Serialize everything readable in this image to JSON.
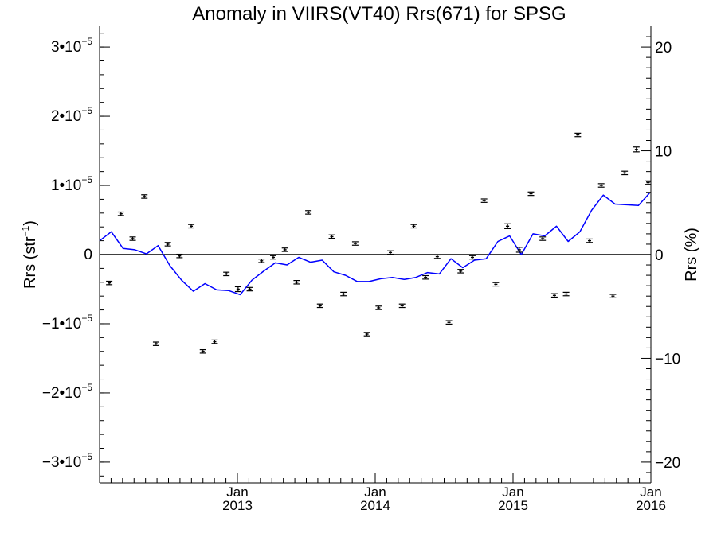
{
  "chart_data": {
    "type": "line",
    "title": "Anomaly in VIIRS(VT40) Rrs(671) for SPSG",
    "ylabel_left_base": "Rrs (str",
    "ylabel_left_sup": "−1",
    "ylabel_left_end": ")",
    "ylabel_right": "Rrs (%)",
    "xlabel": "",
    "xlim": [
      2012.0,
      2016.0
    ],
    "ylim": [
      -3.3e-05,
      3.3e-05
    ],
    "ylim_right": [
      -22,
      22
    ],
    "grid": false,
    "legend": "none",
    "colors": {
      "line": "#0000ff",
      "points": "#000000",
      "zero_line": "#000000"
    },
    "x_ticks_major": [
      {
        "value": 2013.0,
        "month": "Jan",
        "year": "2013"
      },
      {
        "value": 2014.0,
        "month": "Jan",
        "year": "2014"
      },
      {
        "value": 2015.0,
        "month": "Jan",
        "year": "2015"
      },
      {
        "value": 2016.0,
        "month": "Jan",
        "year": "2016"
      }
    ],
    "y_ticks_left": [
      {
        "value": 3e-05,
        "mant": "3•10",
        "exp": "−5"
      },
      {
        "value": 2e-05,
        "mant": "2•10",
        "exp": "−5"
      },
      {
        "value": 1e-05,
        "mant": "1•10",
        "exp": "−5"
      },
      {
        "value": 0,
        "mant": "0",
        "exp": ""
      },
      {
        "value": -1e-05,
        "mant": "−1•10",
        "exp": "−5"
      },
      {
        "value": -2e-05,
        "mant": "−2•10",
        "exp": "−5"
      },
      {
        "value": -3e-05,
        "mant": "−3•10",
        "exp": "−5"
      }
    ],
    "y_ticks_right": [
      {
        "value": 20,
        "label": "20"
      },
      {
        "value": 10,
        "label": "10"
      },
      {
        "value": 0,
        "label": "0"
      },
      {
        "value": -10,
        "label": "−10"
      },
      {
        "value": -20,
        "label": "−20"
      }
    ],
    "series": [
      {
        "kind": "line",
        "x": [
          2012.0,
          2012.085,
          2012.17,
          2012.255,
          2012.34,
          2012.425,
          2012.51,
          2012.595,
          2012.68,
          2012.765,
          2012.85,
          2012.935,
          2013.02,
          2013.105,
          2013.19,
          2013.275,
          2013.36,
          2013.445,
          2013.53,
          2013.615,
          2013.7,
          2013.785,
          2013.87,
          2013.955,
          2014.04,
          2014.125,
          2014.21,
          2014.295,
          2014.38,
          2014.465,
          2014.55,
          2014.635,
          2014.72,
          2014.805,
          2014.89,
          2014.975,
          2015.06,
          2015.145,
          2015.23,
          2015.315,
          2015.4,
          2015.485,
          2015.57,
          2015.655,
          2015.74,
          2015.825,
          2015.91,
          2015.995
        ],
        "y": [
          2e-06,
          3.3e-06,
          9e-07,
          7e-07,
          1e-07,
          1.3e-06,
          -1.6e-06,
          -3.7e-06,
          -5.3e-06,
          -4.2e-06,
          -5.1e-06,
          -5.2e-06,
          -5.8e-06,
          -3.7e-06,
          -2.4e-06,
          -1.2e-06,
          -1.5e-06,
          -4e-07,
          -1.1e-06,
          -8e-07,
          -2.5e-06,
          -3e-06,
          -3.9e-06,
          -3.9e-06,
          -3.5e-06,
          -3.3e-06,
          -3.6e-06,
          -3.3e-06,
          -2.6e-06,
          -2.8e-06,
          -6e-07,
          -1.9e-06,
          -8e-07,
          -6e-07,
          1.9e-06,
          2.7e-06,
          0.0,
          3e-06,
          2.7e-06,
          4.1e-06,
          1.9e-06,
          3.3e-06,
          6.4e-06,
          8.6e-06,
          7.3e-06,
          7.2e-06,
          7.1e-06,
          9e-06
        ]
      },
      {
        "kind": "errorbar",
        "x": [
          2012.07,
          2012.155,
          2012.24,
          2012.325,
          2012.41,
          2012.495,
          2012.58,
          2012.665,
          2012.75,
          2012.835,
          2012.92,
          2013.005,
          2013.09,
          2013.175,
          2013.26,
          2013.345,
          2013.43,
          2013.515,
          2013.6,
          2013.685,
          2013.77,
          2013.855,
          2013.94,
          2014.025,
          2014.11,
          2014.195,
          2014.28,
          2014.365,
          2014.45,
          2014.535,
          2014.62,
          2014.705,
          2014.79,
          2014.875,
          2014.96,
          2015.045,
          2015.13,
          2015.215,
          2015.3,
          2015.385,
          2015.47,
          2015.555,
          2015.64,
          2015.725,
          2015.81,
          2015.895,
          2015.98
        ],
        "y": [
          -4.1e-06,
          5.9e-06,
          2.3e-06,
          8.4e-06,
          -1.29e-05,
          1.5e-06,
          -2e-07,
          4.1e-06,
          -1.4e-05,
          -1.26e-05,
          -2.8e-06,
          -5e-06,
          -5e-06,
          -9e-07,
          -4e-07,
          7e-07,
          -4e-06,
          6.1e-06,
          -7.4e-06,
          2.6e-06,
          -5.7e-06,
          1.6e-06,
          -1.15e-05,
          -7.7e-06,
          3e-07,
          -7.4e-06,
          4.1e-06,
          -3.3e-06,
          -3e-07,
          -9.8e-06,
          -2.4e-06,
          -4e-07,
          7.8e-06,
          -4.3e-06,
          4.1e-06,
          7e-07,
          8.8e-06,
          2.3e-06,
          -5.9e-06,
          -5.7e-06,
          1.73e-05,
          2e-06,
          1e-05,
          -6e-06,
          1.18e-05,
          1.52e-05,
          1.04e-05
        ],
        "err": [
          2.5e-07,
          2.5e-07,
          2.5e-07,
          2.5e-07,
          2.5e-07,
          2.5e-07,
          2.5e-07,
          2.5e-07,
          2.5e-07,
          2.5e-07,
          2.5e-07,
          3.5e-07,
          2.5e-07,
          2.5e-07,
          2.5e-07,
          2.5e-07,
          2.5e-07,
          2.5e-07,
          2.5e-07,
          2.5e-07,
          2.5e-07,
          2.5e-07,
          2.5e-07,
          2.5e-07,
          2.5e-07,
          2.5e-07,
          2.5e-07,
          2.5e-07,
          2.5e-07,
          2.5e-07,
          2.5e-07,
          2.5e-07,
          2.5e-07,
          2.5e-07,
          3.5e-07,
          3.5e-07,
          2.5e-07,
          2.5e-07,
          2.5e-07,
          2.5e-07,
          2.5e-07,
          2.5e-07,
          2.5e-07,
          2.5e-07,
          2.5e-07,
          3.5e-07,
          2.5e-07
        ]
      }
    ]
  }
}
